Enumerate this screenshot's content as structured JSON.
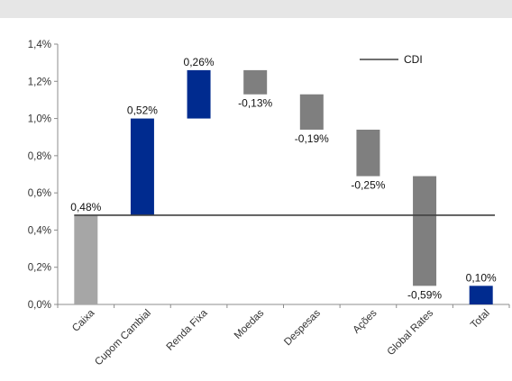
{
  "chart_data": {
    "type": "bar",
    "subtype": "waterfall",
    "title": "",
    "xlabel": "",
    "ylabel": "",
    "ylim": [
      0,
      1.4
    ],
    "yticks": [
      "0,0%",
      "0,2%",
      "0,4%",
      "0,6%",
      "0,8%",
      "1,0%",
      "1,2%",
      "1,4%"
    ],
    "grid": false,
    "legend_position": "top-right",
    "categories": [
      "Caixa",
      "Cupom Cambial",
      "Renda Fixa",
      "Moedas",
      "Despesas",
      "Ações",
      "Global Rates",
      "Total"
    ],
    "values": [
      0.48,
      0.52,
      0.26,
      -0.13,
      -0.19,
      -0.25,
      -0.59,
      0.1
    ],
    "value_labels": [
      "0,48%",
      "0,52%",
      "0,26%",
      "-0,13%",
      "-0,19%",
      "-0,25%",
      "-0,59%",
      "0,10%"
    ],
    "bars": [
      {
        "start": 0.0,
        "end": 0.48,
        "color": "#a6a6a6"
      },
      {
        "start": 0.48,
        "end": 1.0,
        "color": "#002b8f"
      },
      {
        "start": 1.0,
        "end": 1.26,
        "color": "#002b8f"
      },
      {
        "start": 1.26,
        "end": 1.13,
        "color": "#7f7f7f"
      },
      {
        "start": 1.13,
        "end": 0.94,
        "color": "#7f7f7f"
      },
      {
        "start": 0.94,
        "end": 0.69,
        "color": "#7f7f7f"
      },
      {
        "start": 0.69,
        "end": 0.1,
        "color": "#7f7f7f"
      },
      {
        "start": 0.0,
        "end": 0.1,
        "color": "#002b8f"
      }
    ],
    "reference_line": {
      "name": "CDI",
      "value": 0.48,
      "color": "#404040"
    }
  }
}
